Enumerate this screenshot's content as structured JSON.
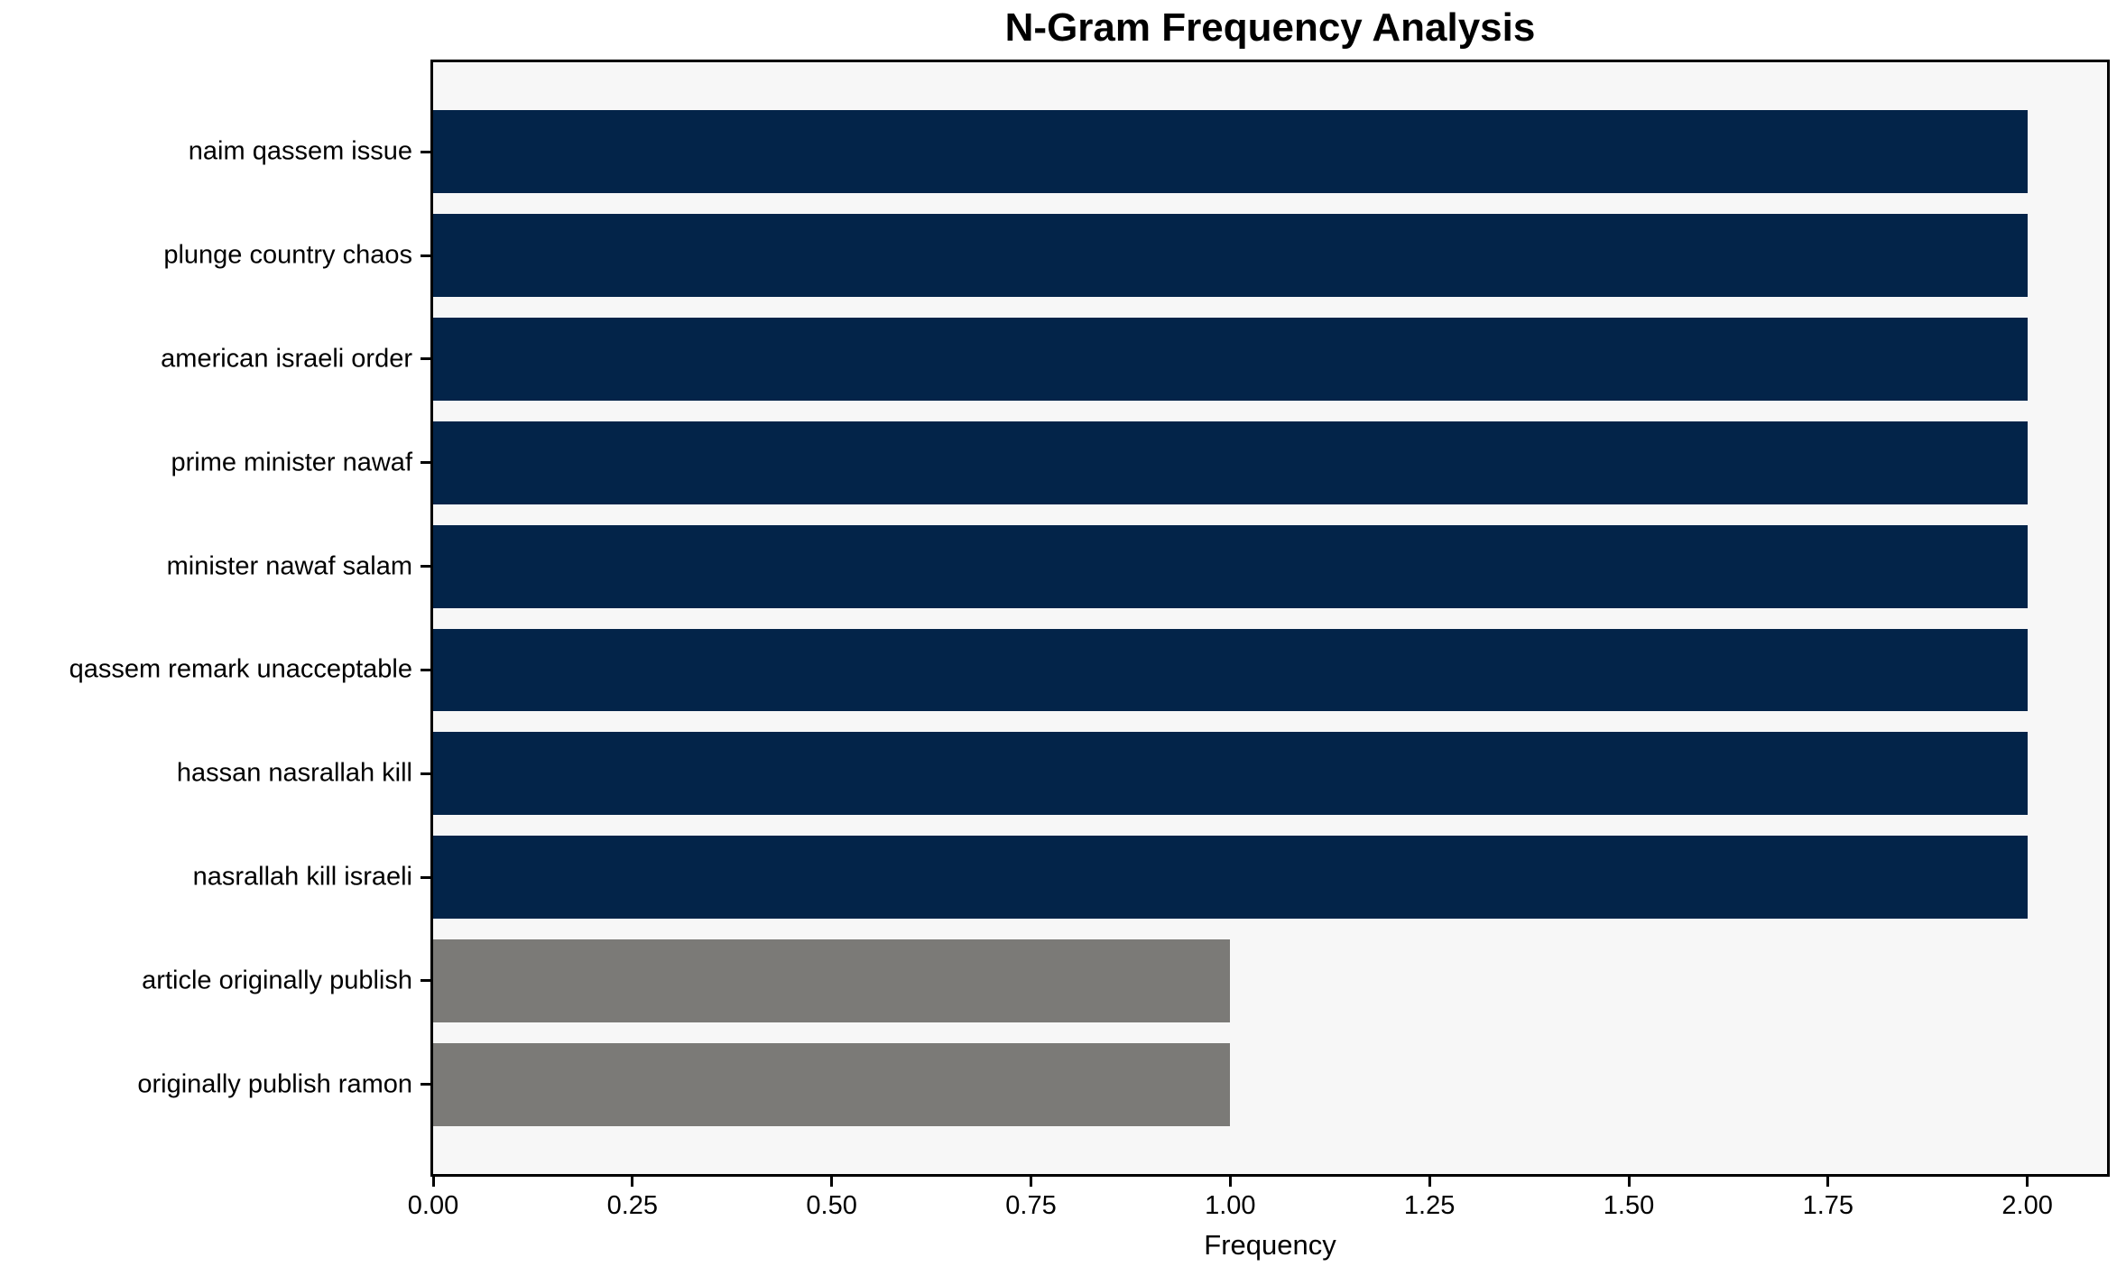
{
  "chart_data": {
    "type": "bar",
    "orientation": "horizontal",
    "title": "N-Gram Frequency Analysis",
    "xlabel": "Frequency",
    "ylabel": "",
    "categories": [
      "naim qassem issue",
      "plunge country chaos",
      "american israeli order",
      "prime minister nawaf",
      "minister nawaf salam",
      "qassem remark unacceptable",
      "hassan nasrallah kill",
      "nasrallah kill israeli",
      "article originally publish",
      "originally publish ramon"
    ],
    "values": [
      2,
      2,
      2,
      2,
      2,
      2,
      2,
      2,
      1,
      1
    ],
    "bar_colors": [
      "#032449",
      "#032449",
      "#032449",
      "#032449",
      "#032449",
      "#032449",
      "#032449",
      "#032449",
      "#7b7a77",
      "#7b7a77"
    ],
    "xlim": [
      0,
      2.1
    ],
    "xticks": [
      0.0,
      0.25,
      0.5,
      0.75,
      1.0,
      1.25,
      1.5,
      1.75,
      2.0
    ],
    "xtick_labels": [
      "0.00",
      "0.25",
      "0.50",
      "0.75",
      "1.00",
      "1.25",
      "1.50",
      "1.75",
      "2.00"
    ],
    "grid": false,
    "legend_position": "none",
    "colors": {
      "bar_primary": "#032449",
      "bar_secondary": "#7b7a77",
      "plot_background": "#f7f7f7",
      "figure_background": "#ffffff",
      "spine": "#000000",
      "text": "#000000"
    }
  }
}
